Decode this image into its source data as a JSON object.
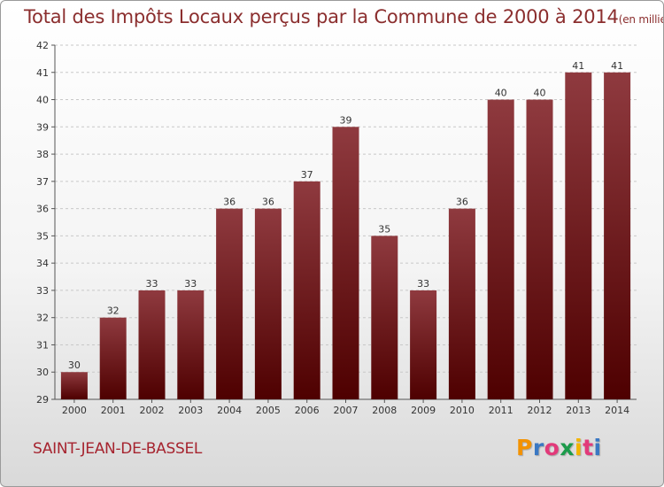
{
  "title": "Total des Impôts Locaux perçus par la Commune de 2000 à 2014",
  "unit": "(en milliers d'€)",
  "commune": "SAINT-JEAN-DE-BASSEL",
  "logo": {
    "letters": [
      "P",
      "r",
      "o",
      "x",
      "i",
      "t",
      "i"
    ],
    "colors": [
      "#f39200",
      "#3a78c3",
      "#e23a7a",
      "#1c9b4b",
      "#f3b400",
      "#e23a7a",
      "#3a78c3"
    ]
  },
  "colors": {
    "bar_top": "#8f3a3f",
    "bar_bottom": "#4e0000",
    "title": "#8b2e2e",
    "commune": "#a6242f"
  },
  "chart_data": {
    "type": "bar",
    "title": "Total des Impôts Locaux perçus par la Commune de 2000 à 2014",
    "xlabel": "",
    "ylabel": "",
    "ylim": [
      29,
      42
    ],
    "yticks": [
      29,
      30,
      31,
      32,
      33,
      34,
      35,
      36,
      37,
      38,
      39,
      40,
      41,
      42
    ],
    "categories": [
      "2000",
      "2001",
      "2002",
      "2003",
      "2004",
      "2005",
      "2006",
      "2007",
      "2008",
      "2009",
      "2010",
      "2011",
      "2012",
      "2013",
      "2014"
    ],
    "values": [
      30,
      32,
      33,
      33,
      36,
      36,
      37,
      39,
      35,
      33,
      36,
      40,
      40,
      41,
      41
    ]
  }
}
